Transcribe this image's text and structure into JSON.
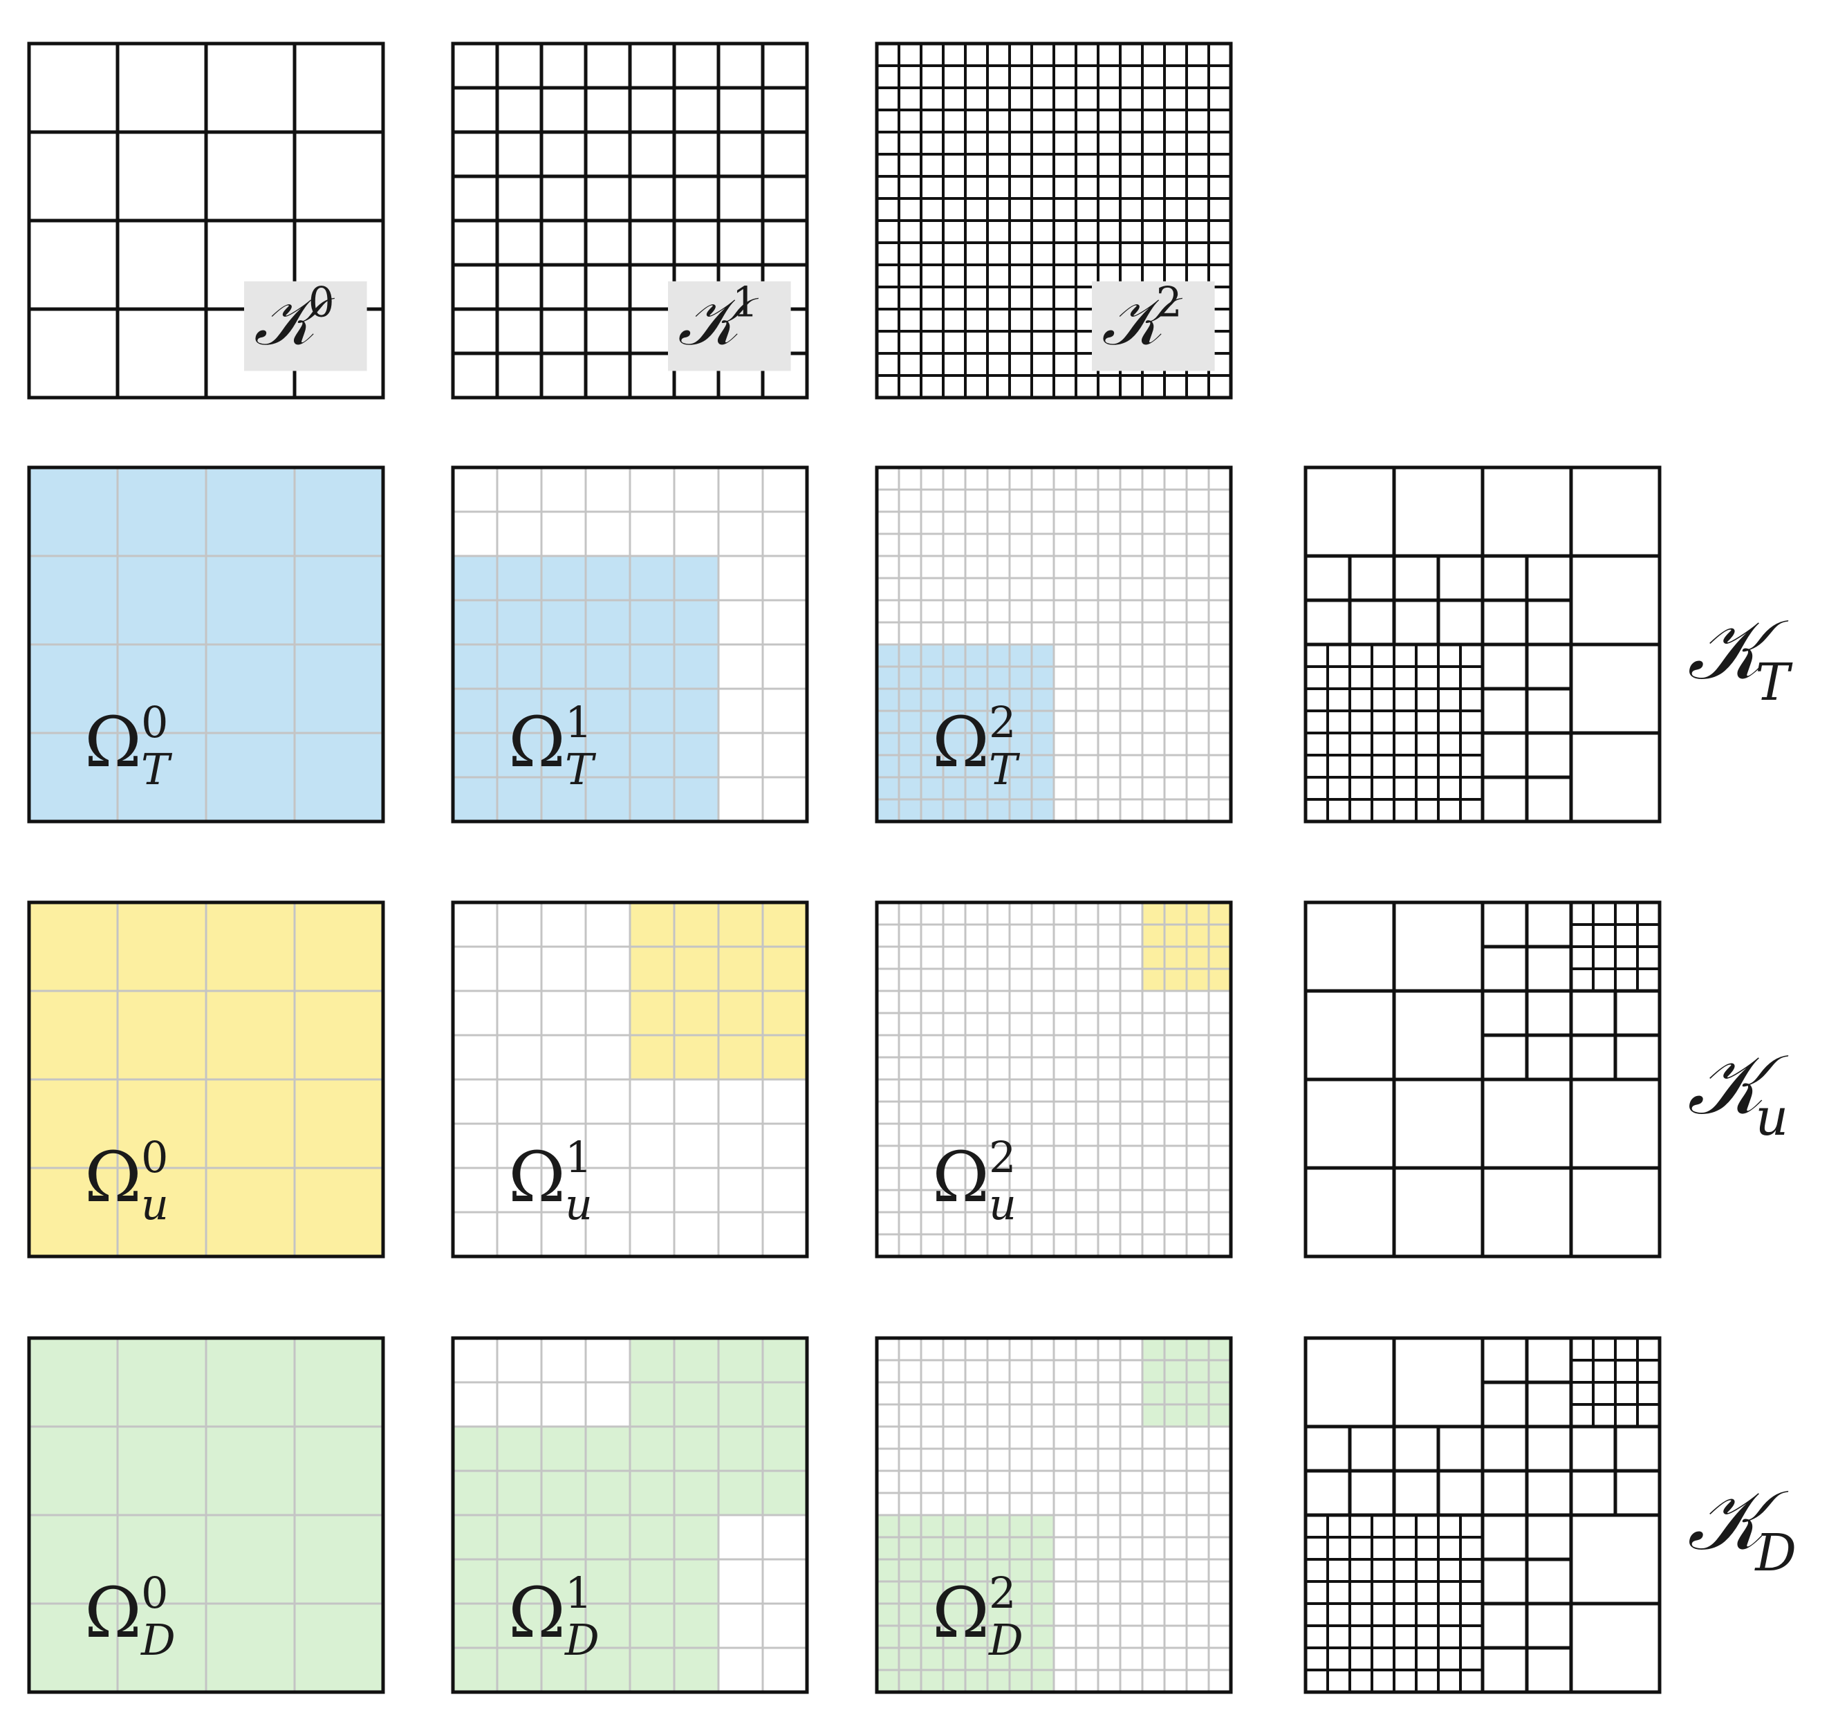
{
  "colors": {
    "frame": "#111111",
    "light_grid": "#c4c4c4",
    "label_bg": "#e6e6e6",
    "domain_T": "#c2e2f4",
    "domain_u": "#fcefa0",
    "domain_D": "#d9f1d3"
  },
  "levels": [
    {
      "label": {
        "base": "𝒦",
        "sup": "0"
      },
      "cells": 4
    },
    {
      "label": {
        "base": "𝒦",
        "sup": "1"
      },
      "cells": 8
    },
    {
      "label": {
        "base": "𝒦",
        "sup": "2"
      },
      "cells": 16
    }
  ],
  "fields": [
    {
      "key": "T",
      "color_key": "domain_T",
      "mesh_label": {
        "base": "𝒦",
        "sub": "T"
      },
      "subdomains": [
        {
          "level": 0,
          "label": {
            "base": "Ω",
            "sup": "0",
            "sub": "T"
          },
          "regions": [
            [
              0,
              0,
              4,
              4
            ]
          ]
        },
        {
          "level": 1,
          "label": {
            "base": "Ω",
            "sup": "1",
            "sub": "T"
          },
          "regions": [
            [
              0,
              2,
              6,
              8
            ]
          ]
        },
        {
          "level": 2,
          "label": {
            "base": "Ω",
            "sup": "2",
            "sub": "T"
          },
          "regions": [
            [
              0,
              8,
              8,
              16
            ]
          ]
        }
      ]
    },
    {
      "key": "u",
      "color_key": "domain_u",
      "mesh_label": {
        "base": "𝒦",
        "sub": "u"
      },
      "subdomains": [
        {
          "level": 0,
          "label": {
            "base": "Ω",
            "sup": "0",
            "sub": "u"
          },
          "regions": [
            [
              0,
              0,
              4,
              4
            ]
          ]
        },
        {
          "level": 1,
          "label": {
            "base": "Ω",
            "sup": "1",
            "sub": "u"
          },
          "regions": [
            [
              4,
              0,
              8,
              4
            ]
          ]
        },
        {
          "level": 2,
          "label": {
            "base": "Ω",
            "sup": "2",
            "sub": "u"
          },
          "regions": [
            [
              12,
              0,
              16,
              4
            ]
          ]
        }
      ]
    },
    {
      "key": "D",
      "color_key": "domain_D",
      "mesh_label": {
        "base": "𝒦",
        "sub": "D"
      },
      "subdomains": [
        {
          "level": 0,
          "label": {
            "base": "Ω",
            "sup": "0",
            "sub": "D"
          },
          "regions": [
            [
              0,
              0,
              4,
              4
            ]
          ]
        },
        {
          "level": 1,
          "label": {
            "base": "Ω",
            "sup": "1",
            "sub": "D"
          },
          "regions": [
            [
              4,
              0,
              8,
              4
            ],
            [
              0,
              2,
              6,
              8
            ]
          ]
        },
        {
          "level": 2,
          "label": {
            "base": "Ω",
            "sup": "2",
            "sub": "D"
          },
          "regions": [
            [
              12,
              0,
              16,
              4
            ],
            [
              0,
              8,
              8,
              16
            ]
          ]
        }
      ]
    }
  ]
}
